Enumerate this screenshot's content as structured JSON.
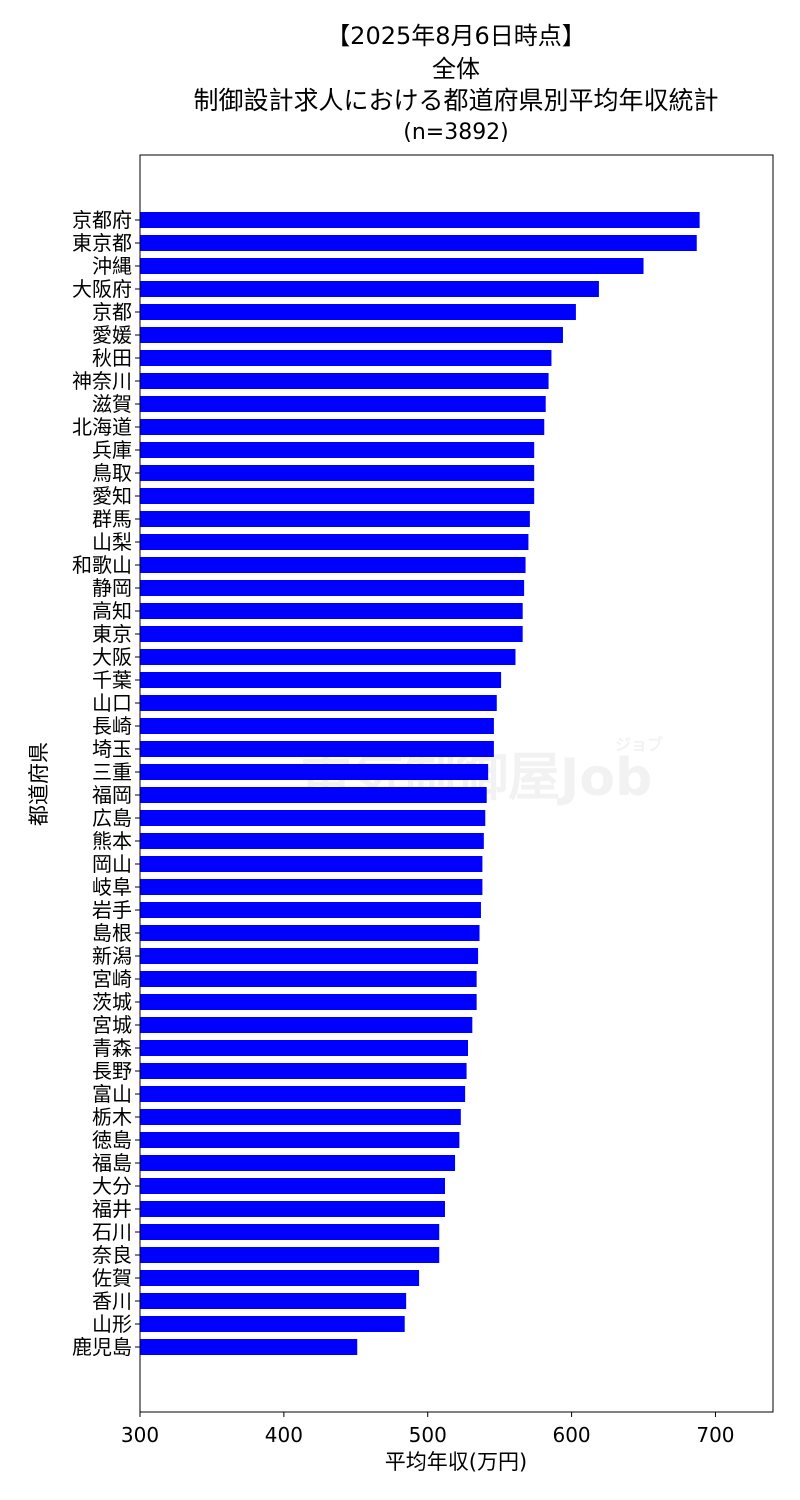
{
  "chart_data": {
    "type": "bar",
    "orientation": "horizontal",
    "title_lines": [
      "【2025年8月6日時点】",
      "全体",
      "制御設計求人における都道府県別平均年収統計",
      "(n=3892)"
    ],
    "xlabel": "平均年収(万円)",
    "ylabel": "都道府県",
    "xlim": [
      300,
      740
    ],
    "xticks": [
      300,
      400,
      500,
      600,
      700
    ],
    "bar_color": "#0000ff",
    "grid": false,
    "watermark": "電気制御屋Job",
    "watermark_small": "ジョブ",
    "categories": [
      "京都府",
      "東京都",
      "沖縄",
      "大阪府",
      "京都",
      "愛媛",
      "秋田",
      "神奈川",
      "滋賀",
      "北海道",
      "兵庫",
      "鳥取",
      "愛知",
      "群馬",
      "山梨",
      "和歌山",
      "静岡",
      "高知",
      "東京",
      "大阪",
      "千葉",
      "山口",
      "長崎",
      "埼玉",
      "三重",
      "福岡",
      "広島",
      "熊本",
      "岡山",
      "岐阜",
      "岩手",
      "島根",
      "新潟",
      "宮崎",
      "茨城",
      "宮城",
      "青森",
      "長野",
      "富山",
      "栃木",
      "徳島",
      "福島",
      "大分",
      "福井",
      "石川",
      "奈良",
      "佐賀",
      "香川",
      "山形",
      "鹿児島"
    ],
    "values": [
      689,
      687,
      650,
      619,
      603,
      594,
      586,
      584,
      582,
      581,
      574,
      574,
      574,
      571,
      570,
      568,
      567,
      566,
      566,
      561,
      551,
      548,
      546,
      546,
      542,
      541,
      540,
      539,
      538,
      538,
      537,
      536,
      535,
      534,
      534,
      531,
      528,
      527,
      526,
      523,
      522,
      519,
      512,
      512,
      508,
      508,
      494,
      485,
      484,
      451
    ]
  }
}
